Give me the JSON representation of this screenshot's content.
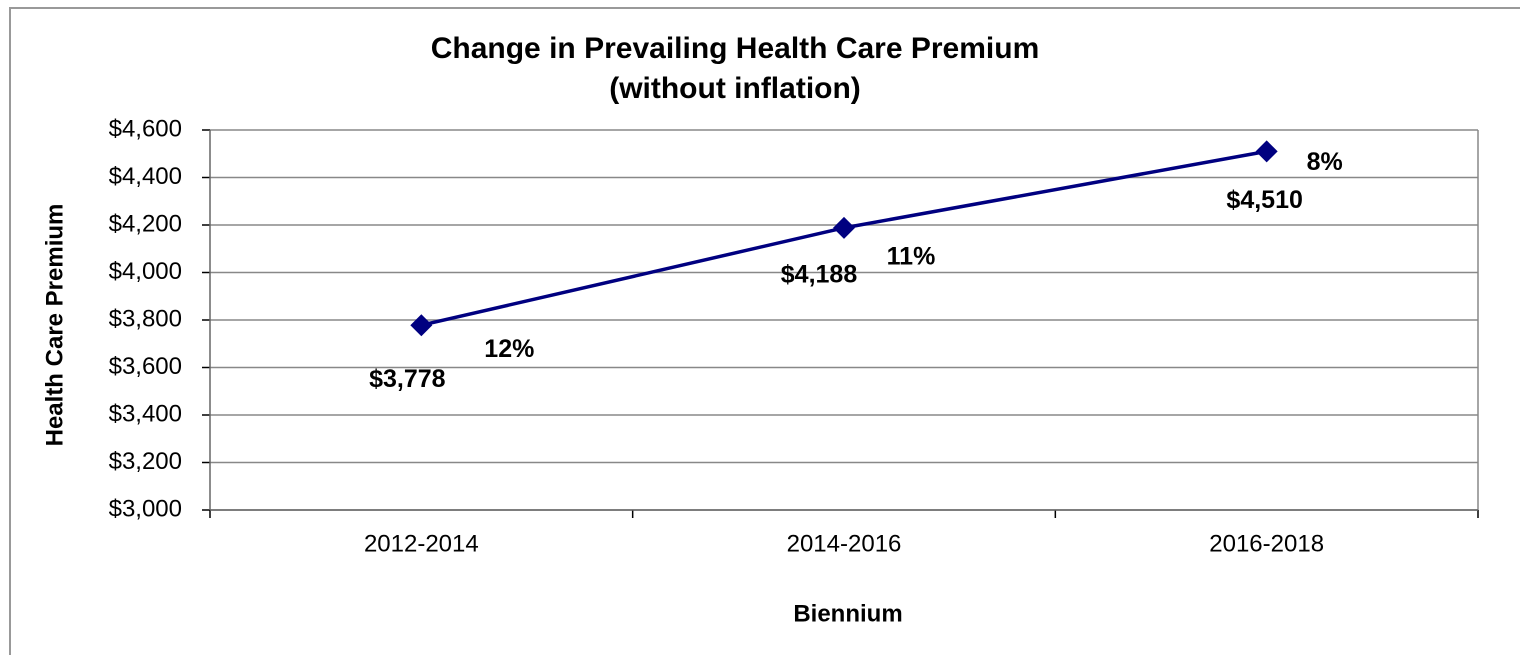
{
  "chart_data": {
    "type": "line",
    "title": "Change in Prevailing Health Care Premium",
    "subtitle": "(without inflation)",
    "x_label": "Biennium",
    "y_label": "Health Care Premium",
    "categories": [
      "2012-2014",
      "2014-2016",
      "2016-2018"
    ],
    "series": [
      {
        "name": "Health Care Premium",
        "color": "#000080",
        "values": [
          3778,
          4188,
          4510
        ],
        "value_labels": [
          "$3,778",
          "$4,188",
          "$4,510"
        ]
      }
    ],
    "annotations": [
      "12%",
      "11%",
      "8%"
    ],
    "ylim": [
      3000,
      4600
    ],
    "yticks": [
      {
        "value": 3000,
        "label": "$3,000"
      },
      {
        "value": 3200,
        "label": "$3,200"
      },
      {
        "value": 3400,
        "label": "$3,400"
      },
      {
        "value": 3600,
        "label": "$3,600"
      },
      {
        "value": 3800,
        "label": "$3,800"
      },
      {
        "value": 4000,
        "label": "$4,000"
      },
      {
        "value": 4200,
        "label": "$4,200"
      },
      {
        "value": 4400,
        "label": "$4,400"
      },
      {
        "value": 4600,
        "label": "$4,600"
      }
    ],
    "grid": true
  }
}
